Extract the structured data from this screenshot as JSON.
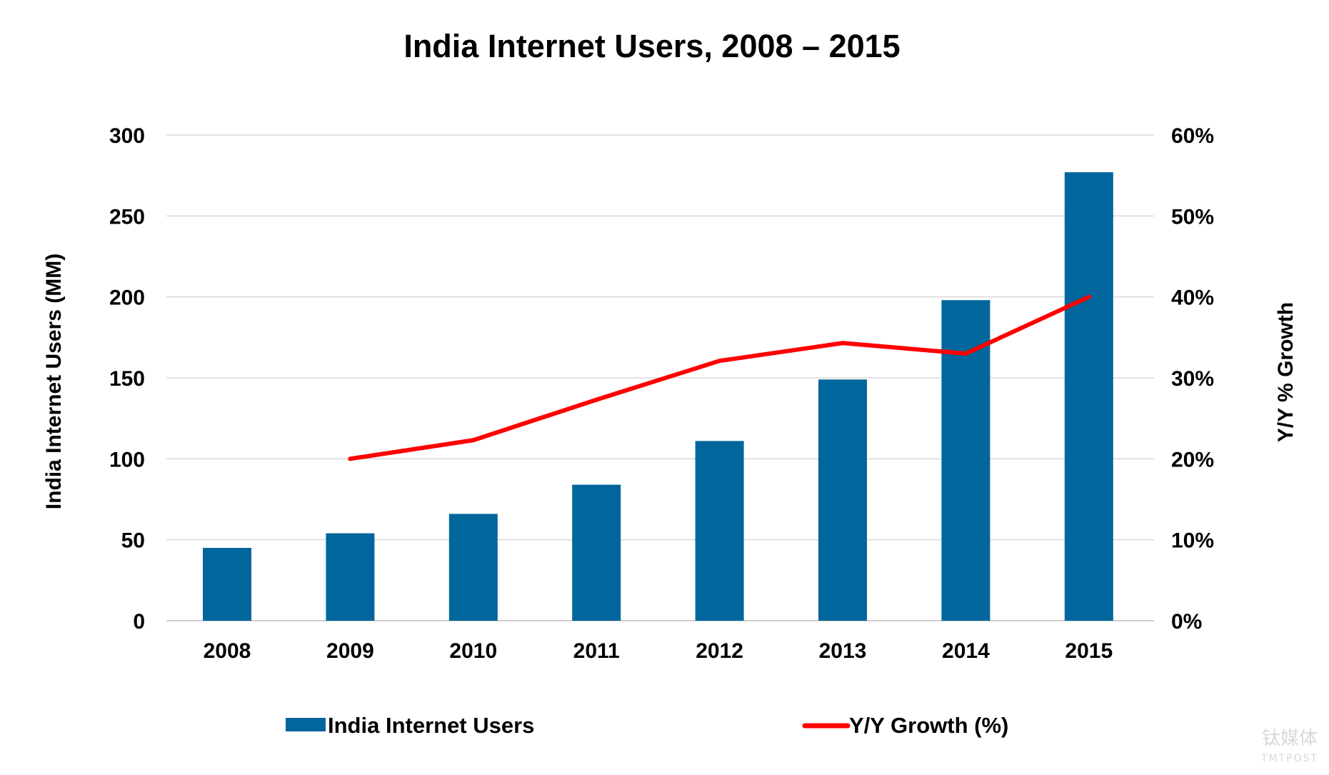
{
  "chart_data": {
    "type": "bar",
    "title": "India Internet Users, 2008 – 2015",
    "categories": [
      "2008",
      "2009",
      "2010",
      "2011",
      "2012",
      "2013",
      "2014",
      "2015"
    ],
    "series": [
      {
        "name": "India Internet Users",
        "type": "bar",
        "axis": "left",
        "color": "#00669C",
        "values": [
          45,
          54,
          66,
          84,
          111,
          149,
          198,
          277
        ]
      },
      {
        "name": "Y/Y Growth (%)",
        "type": "line",
        "axis": "right",
        "color": "#FF0000",
        "values": [
          null,
          20,
          22.3,
          27.3,
          32.1,
          34.3,
          33,
          40
        ]
      }
    ],
    "ylabel": "India Internet Users (MM)",
    "y2label": "Y/Y % Growth",
    "ylim": [
      0,
      300
    ],
    "y2lim": [
      0,
      60
    ],
    "yticks": [
      "0",
      "50",
      "100",
      "150",
      "200",
      "250",
      "300"
    ],
    "y2ticks": [
      "0%",
      "10%",
      "20%",
      "30%",
      "40%",
      "50%",
      "60%"
    ],
    "grid": true,
    "legend": "bottom",
    "watermark": {
      "line1": "钛媒体",
      "line2": "TMTPOST"
    }
  }
}
